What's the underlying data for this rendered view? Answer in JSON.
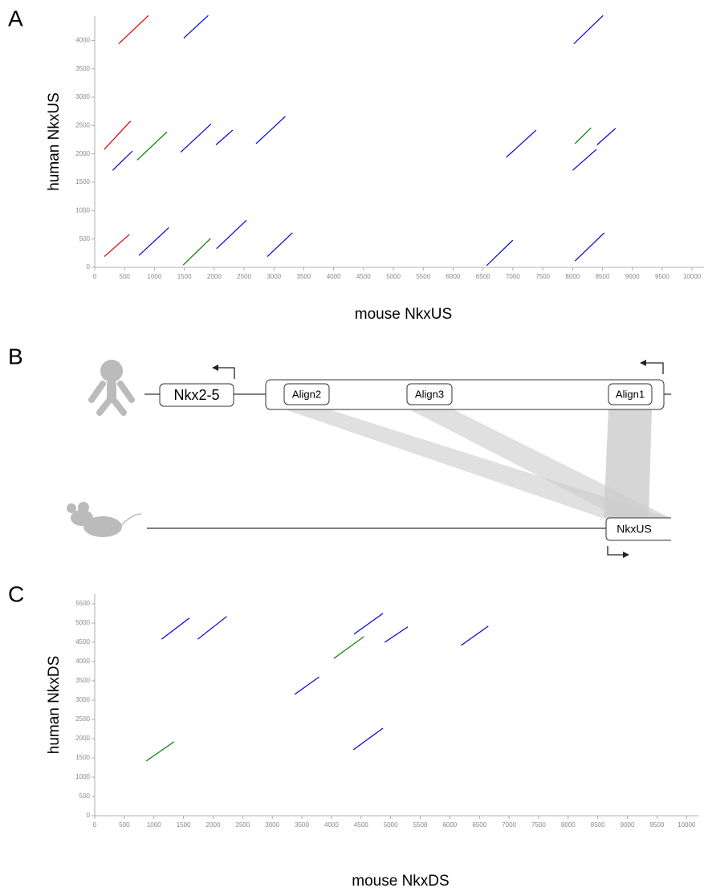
{
  "panel_labels": [
    "A",
    "B",
    "C"
  ],
  "chart_data": [
    {
      "type": "dotplot",
      "x_label": "mouse NkxUS",
      "y_label": "human NkxUS",
      "xlim": [
        0,
        10200
      ],
      "ylim": [
        0,
        4430
      ],
      "xticks": [
        0,
        500,
        1000,
        1500,
        2000,
        2500,
        3000,
        3500,
        4000,
        4500,
        5000,
        5500,
        6000,
        6500,
        7000,
        7500,
        8000,
        8500,
        9000,
        9500,
        10000
      ],
      "yticks": [
        0,
        500,
        1000,
        1500,
        2000,
        2500,
        3000,
        3500,
        4000
      ],
      "series": [
        {
          "color": "#e00000",
          "segments": [
            [
              400,
              3940,
              900,
              4440
            ],
            [
              160,
              2080,
              600,
              2580
            ],
            [
              160,
              190,
              580,
              580
            ]
          ]
        },
        {
          "color": "#0000dd",
          "segments": [
            [
              1490,
              4040,
              1900,
              4440
            ],
            [
              8020,
              3940,
              8510,
              4440
            ],
            [
              300,
              1710,
              630,
              2050
            ],
            [
              1440,
              2030,
              1950,
              2530
            ],
            [
              2030,
              2160,
              2310,
              2420
            ],
            [
              2700,
              2180,
              3190,
              2660
            ],
            [
              6890,
              1940,
              7390,
              2420
            ],
            [
              8410,
              2160,
              8720,
              2450
            ],
            [
              8000,
              1710,
              8400,
              2080
            ],
            [
              740,
              210,
              1240,
              700
            ],
            [
              2040,
              330,
              2540,
              830
            ],
            [
              2890,
              190,
              3310,
              610
            ],
            [
              6560,
              30,
              7000,
              480
            ],
            [
              8040,
              110,
              8530,
              610
            ]
          ]
        },
        {
          "color": "#008000",
          "segments": [
            [
              710,
              1890,
              1210,
              2390
            ],
            [
              8040,
              2180,
              8310,
              2460
            ],
            [
              1480,
              40,
              1940,
              510
            ]
          ]
        }
      ]
    },
    {
      "type": "dotplot",
      "x_label": "mouse NkxDS",
      "y_label": "human NkxDS",
      "xlim": [
        0,
        10200
      ],
      "ylim": [
        0,
        5750
      ],
      "xticks": [
        0,
        500,
        1000,
        1500,
        2000,
        2500,
        3000,
        3500,
        4000,
        4500,
        5000,
        5500,
        6000,
        6500,
        7000,
        7500,
        8000,
        8500,
        9000,
        9500,
        10000
      ],
      "yticks": [
        0,
        500,
        1000,
        1500,
        2000,
        2500,
        3000,
        3500,
        4000,
        4500,
        5000,
        5500
      ],
      "series": [
        {
          "color": "#0000dd",
          "segments": [
            [
              1130,
              4580,
              1600,
              5130
            ],
            [
              1740,
              4580,
              2230,
              5170
            ],
            [
              4380,
              4710,
              4870,
              5250
            ],
            [
              4900,
              4500,
              5290,
              4900
            ],
            [
              6190,
              4420,
              6650,
              4920
            ],
            [
              3380,
              3150,
              3790,
              3600
            ],
            [
              4370,
              1710,
              4870,
              2270
            ]
          ]
        },
        {
          "color": "#008000",
          "segments": [
            [
              4040,
              4080,
              4550,
              4650
            ],
            [
              870,
              1420,
              1340,
              1920
            ]
          ]
        }
      ]
    }
  ],
  "diagram": {
    "human_gene": "Nkx2-5",
    "alignments": [
      "Align2",
      "Align3",
      "Align1"
    ],
    "mouse_gene": "NkxUS"
  }
}
